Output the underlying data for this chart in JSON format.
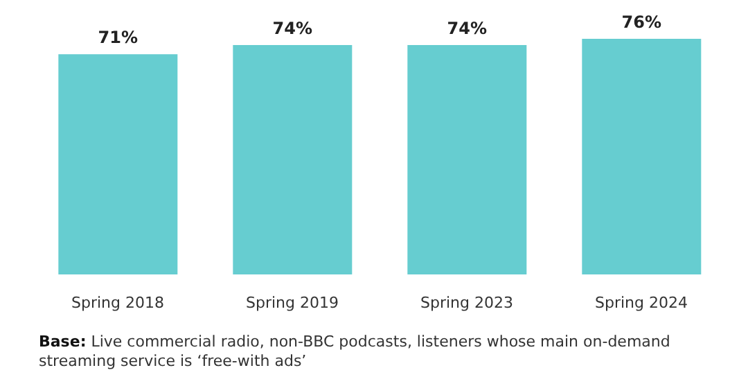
{
  "chart_data": {
    "type": "bar",
    "categories": [
      "Spring 2018",
      "Spring 2019",
      "Spring 2023",
      "Spring 2024"
    ],
    "values": [
      71,
      74,
      74,
      76
    ],
    "value_labels": [
      "71%",
      "74%",
      "74%",
      "76%"
    ],
    "color": "#66cdd0",
    "annotations": [
      "Base: Live commercial radio, non-BBC podcasts, listeners whose main on-demand streaming service is ‘free-with ads’"
    ]
  }
}
